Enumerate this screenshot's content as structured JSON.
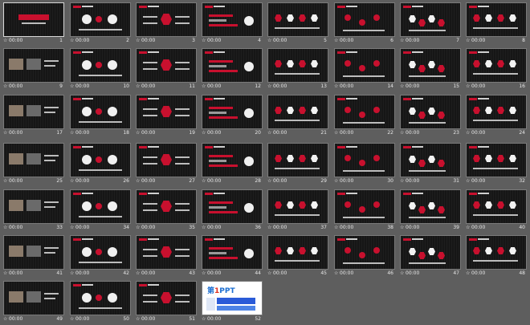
{
  "slides": [
    {
      "number": "1",
      "duration": "00:00"
    },
    {
      "number": "2",
      "duration": "00:00"
    },
    {
      "number": "3",
      "duration": "00:00"
    },
    {
      "number": "4",
      "duration": "00:00"
    },
    {
      "number": "5",
      "duration": "00:00"
    },
    {
      "number": "6",
      "duration": "00:00"
    },
    {
      "number": "7",
      "duration": "00:00"
    },
    {
      "number": "8",
      "duration": "00:00"
    },
    {
      "number": "9",
      "duration": "00:00"
    },
    {
      "number": "10",
      "duration": "00:00"
    },
    {
      "number": "11",
      "duration": "00:00"
    },
    {
      "number": "12",
      "duration": "00:00"
    },
    {
      "number": "13",
      "duration": "00:00"
    },
    {
      "number": "14",
      "duration": "00:00"
    },
    {
      "number": "15",
      "duration": "00:00"
    },
    {
      "number": "16",
      "duration": "00:00"
    },
    {
      "number": "17",
      "duration": "00:00"
    },
    {
      "number": "18",
      "duration": "00:00"
    },
    {
      "number": "19",
      "duration": "00:00"
    },
    {
      "number": "20",
      "duration": "00:00"
    },
    {
      "number": "21",
      "duration": "00:00"
    },
    {
      "number": "22",
      "duration": "00:00"
    },
    {
      "number": "23",
      "duration": "00:00"
    },
    {
      "number": "24",
      "duration": "00:00"
    },
    {
      "number": "25",
      "duration": "00:00"
    },
    {
      "number": "26",
      "duration": "00:00"
    },
    {
      "number": "27",
      "duration": "00:00"
    },
    {
      "number": "28",
      "duration": "00:00"
    },
    {
      "number": "29",
      "duration": "00:00"
    },
    {
      "number": "30",
      "duration": "00:00"
    },
    {
      "number": "31",
      "duration": "00:00"
    },
    {
      "number": "32",
      "duration": "00:00"
    },
    {
      "number": "33",
      "duration": "00:00"
    },
    {
      "number": "34",
      "duration": "00:00"
    },
    {
      "number": "35",
      "duration": "00:00"
    },
    {
      "number": "36",
      "duration": "00:00"
    },
    {
      "number": "37",
      "duration": "00:00"
    },
    {
      "number": "38",
      "duration": "00:00"
    },
    {
      "number": "39",
      "duration": "00:00"
    },
    {
      "number": "40",
      "duration": "00:00"
    },
    {
      "number": "41",
      "duration": "00:00"
    },
    {
      "number": "42",
      "duration": "00:00"
    },
    {
      "number": "43",
      "duration": "00:00"
    },
    {
      "number": "44",
      "duration": "00:00"
    },
    {
      "number": "45",
      "duration": "00:00"
    },
    {
      "number": "46",
      "duration": "00:00"
    },
    {
      "number": "47",
      "duration": "00:00"
    },
    {
      "number": "48",
      "duration": "00:00"
    },
    {
      "number": "49",
      "duration": "00:00"
    },
    {
      "number": "50",
      "duration": "00:00"
    },
    {
      "number": "51",
      "duration": "00:00"
    },
    {
      "number": "52",
      "duration": "00:00"
    }
  ],
  "slide_52": {
    "logo_prefix": "第",
    "logo_highlight": "1",
    "logo_suffix": "PPT"
  },
  "transition_icon": "star-icon",
  "colors": {
    "accent": "#c8102e",
    "background": "#5e5e5e",
    "slide_bg": "#161616",
    "text": "#e6e6e6"
  }
}
